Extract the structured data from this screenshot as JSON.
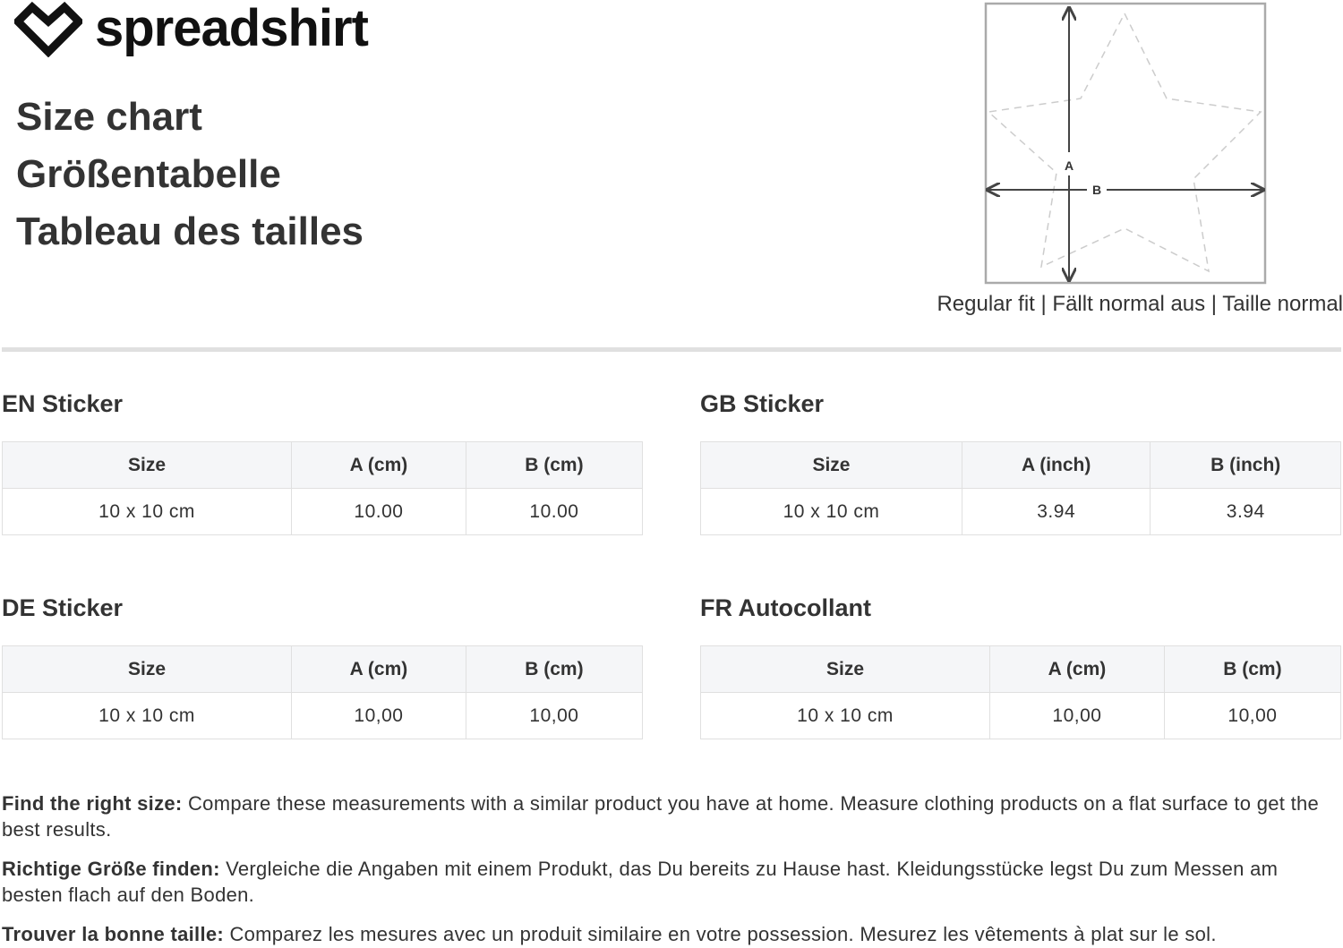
{
  "brand": {
    "name": "spreadshirt"
  },
  "titles": [
    "Size chart",
    "Größentabelle",
    "Tableau des tailles"
  ],
  "figure": {
    "label_a": "A",
    "label_b": "B",
    "fit_text": "Regular fit | Fällt normal aus | Taille normal"
  },
  "tables": [
    {
      "title": "EN Sticker",
      "headers": [
        "Size",
        "A (cm)",
        "B (cm)"
      ],
      "rows": [
        [
          "10 x 10 cm",
          "10.00",
          "10.00"
        ]
      ]
    },
    {
      "title": "GB Sticker",
      "headers": [
        "Size",
        "A (inch)",
        "B (inch)"
      ],
      "rows": [
        [
          "10 x 10 cm",
          "3.94",
          "3.94"
        ]
      ]
    },
    {
      "title": "DE Sticker",
      "headers": [
        "Size",
        "A (cm)",
        "B (cm)"
      ],
      "rows": [
        [
          "10 x 10 cm",
          "10,00",
          "10,00"
        ]
      ]
    },
    {
      "title": "FR Autocollant",
      "headers": [
        "Size",
        "A (cm)",
        "B (cm)"
      ],
      "rows": [
        [
          "10 x 10 cm",
          "10,00",
          "10,00"
        ]
      ]
    }
  ],
  "notes": [
    {
      "label": "Find the right size:",
      "text": " Compare these measurements with a similar product you have at home. Measure clothing products on a flat surface to get the best results."
    },
    {
      "label": "Richtige Größe finden:",
      "text": " Vergleiche die Angaben mit einem Produkt, das Du bereits zu Hause hast. Kleidungsstücke legst Du zum Messen am besten flach auf den Boden."
    },
    {
      "label": "Trouver la bonne taille:",
      "text": " Comparez les mesures avec un produit similaire en votre possession. Mesurez les vêtements à plat sur le sol."
    }
  ]
}
